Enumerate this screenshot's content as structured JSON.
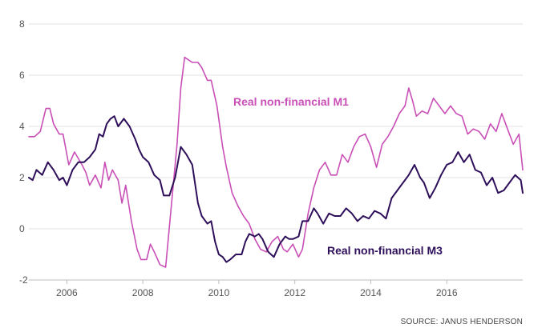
{
  "chart_data": {
    "type": "line",
    "title": "",
    "xlabel": "",
    "ylabel": "",
    "xlim": [
      2005.0,
      2018.0
    ],
    "ylim": [
      -2,
      8
    ],
    "x_ticks": [
      2006,
      2008,
      2010,
      2012,
      2014,
      2016
    ],
    "y_ticks": [
      -2,
      0,
      2,
      4,
      6,
      8
    ],
    "grid": "horizontal",
    "source": "SOURCE: JANUS HENDERSON",
    "series": [
      {
        "name": "Real non-financial M1",
        "color": "#c94fb7",
        "x": [
          2005.0,
          2005.15,
          2005.3,
          2005.45,
          2005.55,
          2005.65,
          2005.8,
          2005.9,
          2006.05,
          2006.2,
          2006.4,
          2006.5,
          2006.6,
          2006.75,
          2006.9,
          2007.0,
          2007.1,
          2007.2,
          2007.35,
          2007.45,
          2007.55,
          2007.7,
          2007.85,
          2007.95,
          2008.1,
          2008.2,
          2008.3,
          2008.45,
          2008.6,
          2008.75,
          2008.9,
          2009.0,
          2009.1,
          2009.2,
          2009.3,
          2009.45,
          2009.55,
          2009.7,
          2009.8,
          2009.95,
          2010.1,
          2010.2,
          2010.35,
          2010.5,
          2010.65,
          2010.8,
          2010.95,
          2011.1,
          2011.25,
          2011.4,
          2011.55,
          2011.7,
          2011.8,
          2011.95,
          2012.1,
          2012.2,
          2012.35,
          2012.5,
          2012.65,
          2012.8,
          2012.95,
          2013.1,
          2013.25,
          2013.4,
          2013.55,
          2013.7,
          2013.85,
          2014.0,
          2014.15,
          2014.3,
          2014.45,
          2014.6,
          2014.75,
          2014.9,
          2015.0,
          2015.1,
          2015.2,
          2015.35,
          2015.5,
          2015.65,
          2015.8,
          2015.95,
          2016.1,
          2016.25,
          2016.4,
          2016.55,
          2016.7,
          2016.85,
          2017.0,
          2017.15,
          2017.3,
          2017.45,
          2017.6,
          2017.75,
          2017.9,
          2018.0
        ],
        "values": [
          3.6,
          3.6,
          3.8,
          4.7,
          4.7,
          4.1,
          3.7,
          3.7,
          2.5,
          3.0,
          2.5,
          2.2,
          1.7,
          2.1,
          1.6,
          2.6,
          1.9,
          2.3,
          1.9,
          1.0,
          1.7,
          0.3,
          -0.8,
          -1.2,
          -1.2,
          -0.6,
          -0.9,
          -1.4,
          -1.5,
          0.9,
          3.3,
          5.5,
          6.7,
          6.6,
          6.5,
          6.5,
          6.3,
          5.8,
          5.8,
          4.8,
          3.2,
          2.4,
          1.4,
          0.9,
          0.5,
          0.2,
          -0.4,
          -0.8,
          -0.9,
          -0.5,
          -0.3,
          -0.8,
          -0.9,
          -0.6,
          -1.1,
          -0.8,
          0.6,
          1.6,
          2.3,
          2.6,
          2.1,
          2.1,
          2.9,
          2.6,
          3.2,
          3.6,
          3.7,
          3.2,
          2.4,
          3.3,
          3.6,
          4.0,
          4.5,
          4.8,
          5.5,
          5.0,
          4.4,
          4.6,
          4.5,
          5.1,
          4.8,
          4.5,
          4.8,
          4.5,
          4.4,
          3.7,
          3.9,
          3.8,
          3.5,
          4.1,
          3.8,
          4.5,
          3.9,
          3.3,
          3.7,
          2.3
        ]
      },
      {
        "name": "Real non-financial M3",
        "color": "#2e0f5a",
        "x": [
          2005.0,
          2005.1,
          2005.2,
          2005.35,
          2005.5,
          2005.65,
          2005.8,
          2005.9,
          2006.0,
          2006.15,
          2006.3,
          2006.45,
          2006.6,
          2006.75,
          2006.85,
          2006.95,
          2007.05,
          2007.15,
          2007.25,
          2007.35,
          2007.5,
          2007.65,
          2007.8,
          2007.9,
          2008.0,
          2008.15,
          2008.3,
          2008.45,
          2008.55,
          2008.7,
          2008.85,
          2009.0,
          2009.15,
          2009.3,
          2009.45,
          2009.55,
          2009.7,
          2009.8,
          2009.9,
          2010.0,
          2010.1,
          2010.2,
          2010.3,
          2010.45,
          2010.6,
          2010.7,
          2010.8,
          2010.95,
          2011.05,
          2011.15,
          2011.3,
          2011.45,
          2011.6,
          2011.75,
          2011.85,
          2011.95,
          2012.1,
          2012.2,
          2012.35,
          2012.5,
          2012.6,
          2012.75,
          2012.9,
          2013.05,
          2013.2,
          2013.35,
          2013.5,
          2013.65,
          2013.8,
          2013.95,
          2014.1,
          2014.25,
          2014.4,
          2014.55,
          2014.7,
          2014.85,
          2015.0,
          2015.15,
          2015.3,
          2015.4,
          2015.55,
          2015.7,
          2015.85,
          2016.0,
          2016.15,
          2016.3,
          2016.45,
          2016.6,
          2016.75,
          2016.9,
          2017.05,
          2017.2,
          2017.35,
          2017.5,
          2017.65,
          2017.8,
          2017.95,
          2018.0
        ],
        "values": [
          2.0,
          1.9,
          2.3,
          2.1,
          2.6,
          2.3,
          1.9,
          2.0,
          1.7,
          2.3,
          2.6,
          2.6,
          2.8,
          3.1,
          3.7,
          3.6,
          4.1,
          4.3,
          4.4,
          4.0,
          4.3,
          4.0,
          3.5,
          3.1,
          2.8,
          2.6,
          2.1,
          1.9,
          1.3,
          1.3,
          2.0,
          3.2,
          2.9,
          2.5,
          1.0,
          0.5,
          0.2,
          0.3,
          -0.5,
          -1.0,
          -1.1,
          -1.3,
          -1.2,
          -1.0,
          -1.0,
          -0.5,
          -0.2,
          -0.3,
          -0.2,
          -0.4,
          -0.9,
          -1.1,
          -0.6,
          -0.3,
          -0.4,
          -0.4,
          -0.3,
          0.3,
          0.3,
          0.8,
          0.6,
          0.2,
          0.6,
          0.5,
          0.5,
          0.8,
          0.6,
          0.3,
          0.5,
          0.4,
          0.7,
          0.6,
          0.4,
          1.2,
          1.5,
          1.8,
          2.1,
          2.5,
          2.0,
          1.8,
          1.2,
          1.6,
          2.1,
          2.5,
          2.6,
          3.0,
          2.6,
          2.9,
          2.3,
          2.2,
          1.7,
          2.0,
          1.4,
          1.5,
          1.8,
          2.1,
          1.9,
          1.4
        ]
      }
    ],
    "annotations": [
      {
        "text": "Real non-financial M1",
        "series": 0
      },
      {
        "text": "Real non-financial M3",
        "series": 1
      }
    ]
  }
}
